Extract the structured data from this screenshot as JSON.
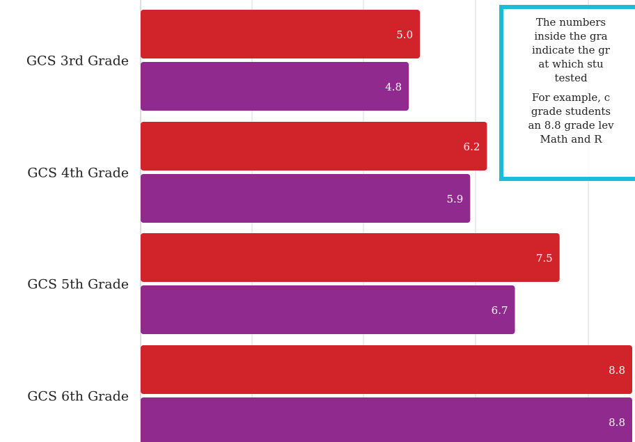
{
  "chart_data": {
    "type": "bar",
    "orientation": "horizontal",
    "categories": [
      "GCS 3rd Grade",
      "GCS 4th Grade",
      "GCS 5th Grade",
      "GCS 6th Grade"
    ],
    "series": [
      {
        "color": "#d0232a",
        "values": [
          5.0,
          6.2,
          7.5,
          8.8
        ],
        "labels": [
          "5.0",
          "6.2",
          "7.5",
          "8.8"
        ]
      },
      {
        "color": "#902a8f",
        "values": [
          4.8,
          5.9,
          6.7,
          8.8
        ],
        "labels": [
          "4.8",
          "5.9",
          "6.7",
          "8.8"
        ]
      }
    ],
    "xlim": [
      0,
      8.8
    ],
    "grid": true,
    "title": "",
    "xlabel": "",
    "ylabel": ""
  },
  "note": {
    "paragraph1": "The numbers\ninside the gra\nindicate the gr\nat which stu\ntested",
    "paragraph2": "For example, c\ngrade students\nan 8.8 grade lev\nMath and R"
  }
}
